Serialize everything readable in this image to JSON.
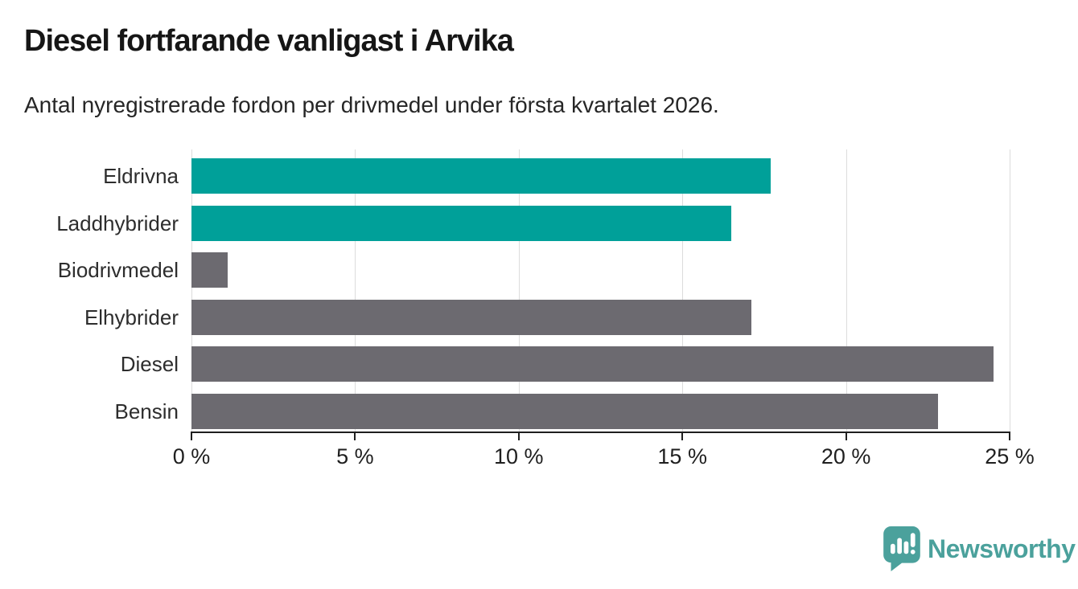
{
  "header": {
    "title": "Diesel fortfarande vanligast i Arvika",
    "subtitle": "Antal nyregistrerade fordon per drivmedel under första kvartalet 2026."
  },
  "chart_data": {
    "type": "bar",
    "orientation": "horizontal",
    "title": "Diesel fortfarande vanligast i Arvika",
    "subtitle": "Antal nyregistrerade fordon per drivmedel under första kvartalet 2026.",
    "categories": [
      "Eldrivna",
      "Laddhybrider",
      "Biodrivmedel",
      "Elhybrider",
      "Diesel",
      "Bensin"
    ],
    "values": [
      17.7,
      16.5,
      1.1,
      17.1,
      24.5,
      22.8
    ],
    "unit": "%",
    "bar_colors": [
      "#00a099",
      "#00a099",
      "#6c6a70",
      "#6c6a70",
      "#6c6a70",
      "#6c6a70"
    ],
    "xlabel": "",
    "ylabel": "",
    "xlim": [
      0,
      25
    ],
    "x_ticks": [
      0,
      5,
      10,
      15,
      20,
      25
    ],
    "x_tick_labels": [
      "0 %",
      "5 %",
      "10 %",
      "15 %",
      "20 %",
      "25 %"
    ],
    "grid": true,
    "legend": "none"
  },
  "branding": {
    "logo_text": "Newsworthy",
    "logo_color": "#4ba19c",
    "logo_icon": "bar-chart-speech-bubble"
  },
  "colors": {
    "background": "#ffffff",
    "highlight_bar": "#00a099",
    "default_bar": "#6c6a70",
    "text": "#262626",
    "axis": "#1f1f1f",
    "gridline": "#dcdcdc"
  }
}
